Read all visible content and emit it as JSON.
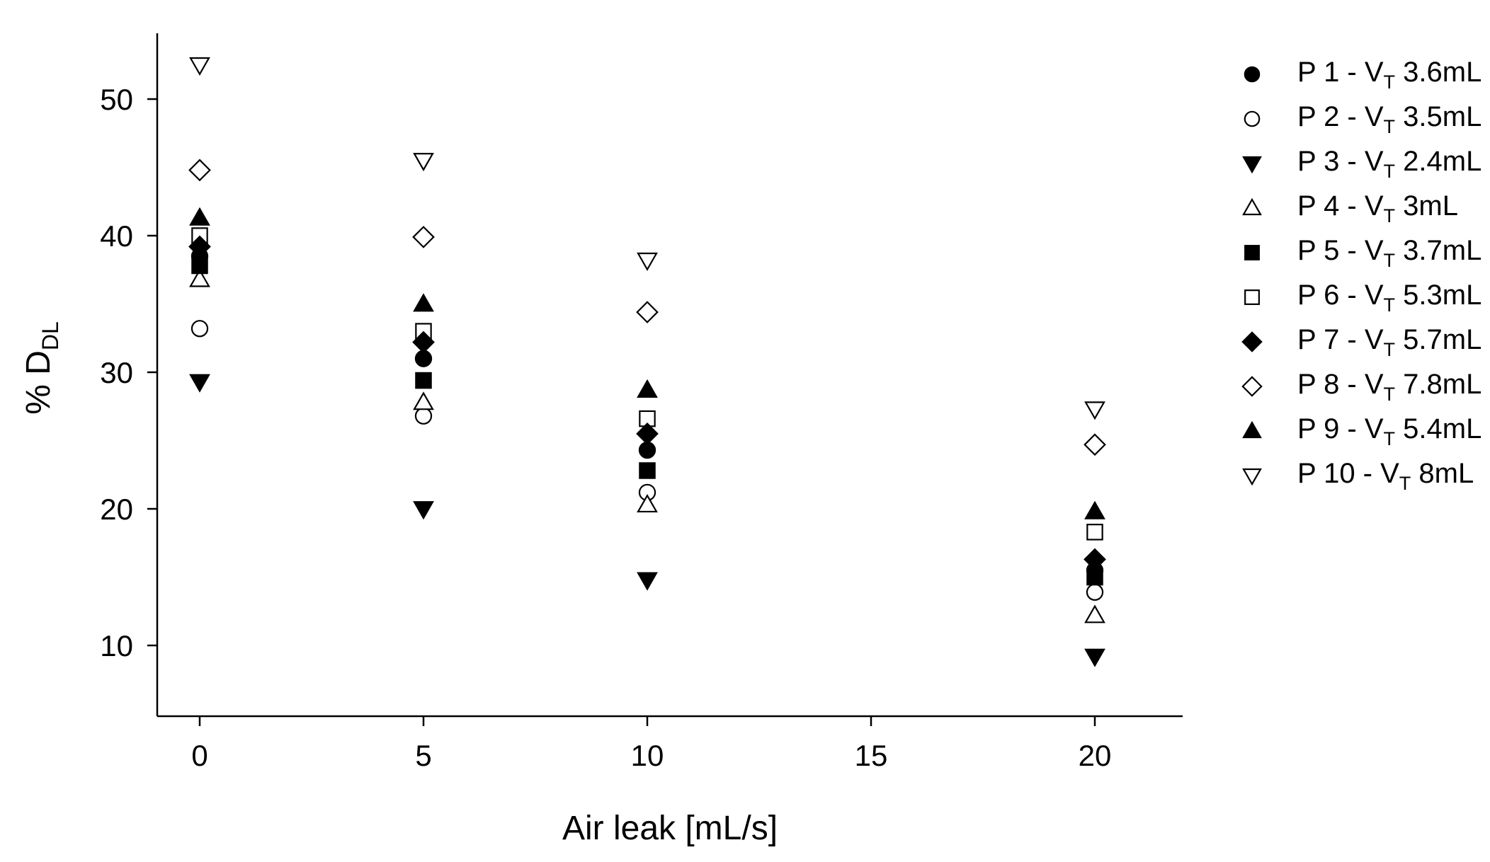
{
  "chart_data": {
    "type": "scatter",
    "title": "",
    "xlabel": "Air leak [mL/s]",
    "ylabel": {
      "main": "% D",
      "sub": "DL"
    },
    "xlim": [
      -1,
      22
    ],
    "ylim": [
      5,
      55
    ],
    "xticks": [
      0,
      5,
      10,
      15,
      20
    ],
    "yticks": [
      10,
      20,
      30,
      40,
      50
    ],
    "grid": false,
    "legend_position": "right",
    "x": [
      0,
      5,
      10,
      20
    ],
    "series": [
      {
        "name": "P 1 - V",
        "sub": "T",
        "tail": " 3.6mL",
        "marker": "circle",
        "filled": true,
        "values": [
          38.5,
          31.0,
          24.3,
          15.5
        ]
      },
      {
        "name": "P 2 - V",
        "sub": "T",
        "tail": " 3.5mL",
        "marker": "circle",
        "filled": false,
        "values": [
          33.2,
          26.8,
          21.2,
          13.9
        ]
      },
      {
        "name": "P 3 - V",
        "sub": "T",
        "tail": " 2.4mL",
        "marker": "triangle-down",
        "filled": true,
        "values": [
          29.3,
          20.0,
          14.8,
          9.2
        ]
      },
      {
        "name": "P 4 - V",
        "sub": "T",
        "tail": " 3mL",
        "marker": "triangle-up",
        "filled": false,
        "values": [
          36.8,
          27.8,
          20.3,
          12.2
        ]
      },
      {
        "name": "P 5 - V",
        "sub": "T",
        "tail": " 3.7mL",
        "marker": "square",
        "filled": true,
        "values": [
          37.8,
          29.4,
          22.8,
          15.0
        ]
      },
      {
        "name": "P 6 - V",
        "sub": "T",
        "tail": " 5.3mL",
        "marker": "square",
        "filled": false,
        "values": [
          40.0,
          33.0,
          26.6,
          18.3
        ]
      },
      {
        "name": "P 7 - V",
        "sub": "T",
        "tail": " 5.7mL",
        "marker": "diamond",
        "filled": true,
        "values": [
          39.2,
          32.2,
          25.5,
          16.3
        ]
      },
      {
        "name": "P 8 - V",
        "sub": "T",
        "tail": " 7.8mL",
        "marker": "diamond",
        "filled": false,
        "values": [
          44.8,
          39.9,
          34.4,
          24.7
        ]
      },
      {
        "name": "P 9 - V",
        "sub": "T",
        "tail": " 5.4mL",
        "marker": "triangle-up",
        "filled": true,
        "values": [
          41.3,
          35.0,
          28.7,
          19.8
        ]
      },
      {
        "name": "P 10 - V",
        "sub": "T",
        "tail": " 8mL",
        "marker": "triangle-down",
        "filled": false,
        "values": [
          52.5,
          45.5,
          38.2,
          27.3
        ]
      }
    ]
  }
}
